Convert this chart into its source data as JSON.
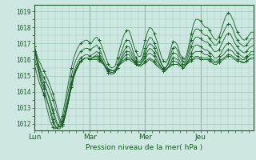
{
  "bg_color": "#cde8e0",
  "grid_color": "#a0c8bc",
  "line_color": "#1a5c28",
  "xlabel": "Pression niveau de la mer( hPa )",
  "yticks": [
    1012,
    1013,
    1014,
    1015,
    1016,
    1017,
    1018,
    1019
  ],
  "ylim": [
    1011.6,
    1019.4
  ],
  "xlim": [
    0,
    95
  ],
  "day_labels": [
    "Lun",
    "Mar",
    "Mer",
    "Jeu"
  ],
  "day_positions": [
    0,
    24,
    48,
    72
  ],
  "series": [
    [
      1016.8,
      1016.3,
      1015.9,
      1015.6,
      1015.3,
      1015.0,
      1014.7,
      1014.3,
      1013.9,
      1013.4,
      1012.8,
      1012.3,
      1012.1,
      1012.5,
      1013.1,
      1013.8,
      1014.5,
      1015.0,
      1015.4,
      1015.7,
      1015.9,
      1016.0,
      1016.1,
      1016.1,
      1016.0,
      1016.0,
      1016.0,
      1016.0,
      1015.9,
      1015.8,
      1015.7,
      1015.5,
      1015.4,
      1015.4,
      1015.3,
      1015.4,
      1015.5,
      1015.7,
      1015.8,
      1015.9,
      1016.0,
      1016.0,
      1015.9,
      1015.8,
      1015.7,
      1015.6,
      1015.6,
      1015.7,
      1015.8,
      1015.9,
      1016.0,
      1015.9,
      1015.8,
      1015.6,
      1015.5,
      1015.4,
      1015.4,
      1015.4,
      1015.5,
      1015.6,
      1015.7,
      1015.7,
      1015.7,
      1015.6,
      1015.6,
      1015.6,
      1015.7,
      1015.8,
      1015.9,
      1016.0,
      1016.1,
      1016.1,
      1016.0,
      1016.0,
      1016.0,
      1016.0,
      1015.9,
      1015.8,
      1015.7,
      1015.7,
      1015.8,
      1015.9,
      1016.0,
      1016.1,
      1016.2,
      1016.2,
      1016.1,
      1016.0,
      1015.9,
      1015.9,
      1015.8,
      1015.8,
      1015.9,
      1016.0,
      1016.1,
      1016.1
    ],
    [
      1016.5,
      1016.0,
      1015.6,
      1015.2,
      1014.9,
      1014.6,
      1014.3,
      1013.9,
      1013.5,
      1013.0,
      1012.5,
      1012.1,
      1012.0,
      1012.4,
      1013.0,
      1013.7,
      1014.4,
      1015.0,
      1015.4,
      1015.7,
      1015.9,
      1016.0,
      1016.1,
      1016.1,
      1016.0,
      1016.1,
      1016.1,
      1016.1,
      1016.0,
      1015.9,
      1015.7,
      1015.5,
      1015.4,
      1015.3,
      1015.3,
      1015.3,
      1015.5,
      1015.7,
      1015.9,
      1016.0,
      1016.1,
      1016.1,
      1016.0,
      1015.9,
      1015.7,
      1015.6,
      1015.6,
      1015.7,
      1015.9,
      1016.0,
      1016.1,
      1016.0,
      1015.9,
      1015.7,
      1015.6,
      1015.5,
      1015.4,
      1015.4,
      1015.5,
      1015.6,
      1015.7,
      1015.7,
      1015.7,
      1015.6,
      1015.6,
      1015.6,
      1015.7,
      1015.9,
      1016.0,
      1016.1,
      1016.2,
      1016.2,
      1016.1,
      1016.1,
      1016.1,
      1016.1,
      1016.0,
      1015.9,
      1015.8,
      1015.8,
      1015.9,
      1016.0,
      1016.1,
      1016.2,
      1016.3,
      1016.3,
      1016.2,
      1016.1,
      1016.0,
      1015.9,
      1015.9,
      1015.8,
      1015.9,
      1016.0,
      1016.1,
      1016.1
    ],
    [
      1016.1,
      1015.6,
      1015.1,
      1014.7,
      1014.4,
      1014.1,
      1013.8,
      1013.4,
      1012.9,
      1012.4,
      1012.0,
      1011.8,
      1011.9,
      1012.3,
      1012.9,
      1013.6,
      1014.3,
      1014.9,
      1015.3,
      1015.6,
      1015.9,
      1016.0,
      1016.1,
      1016.1,
      1016.0,
      1016.1,
      1016.2,
      1016.2,
      1016.1,
      1015.9,
      1015.7,
      1015.5,
      1015.3,
      1015.2,
      1015.2,
      1015.3,
      1015.5,
      1015.7,
      1016.0,
      1016.2,
      1016.3,
      1016.3,
      1016.1,
      1015.9,
      1015.8,
      1015.7,
      1015.7,
      1015.9,
      1016.1,
      1016.3,
      1016.4,
      1016.3,
      1016.2,
      1015.9,
      1015.7,
      1015.5,
      1015.4,
      1015.4,
      1015.5,
      1015.7,
      1015.9,
      1015.9,
      1015.8,
      1015.7,
      1015.6,
      1015.6,
      1015.8,
      1016.0,
      1016.2,
      1016.4,
      1016.5,
      1016.5,
      1016.5,
      1016.4,
      1016.3,
      1016.3,
      1016.2,
      1016.0,
      1015.9,
      1015.9,
      1016.0,
      1016.2,
      1016.3,
      1016.5,
      1016.6,
      1016.6,
      1016.5,
      1016.3,
      1016.2,
      1016.1,
      1016.0,
      1016.0,
      1016.1,
      1016.2,
      1016.3,
      1016.3
    ],
    [
      1015.7,
      1015.1,
      1014.6,
      1014.2,
      1013.9,
      1013.6,
      1013.2,
      1012.8,
      1012.3,
      1011.9,
      1011.7,
      1011.7,
      1011.9,
      1012.3,
      1012.9,
      1013.6,
      1014.3,
      1014.9,
      1015.3,
      1015.6,
      1015.9,
      1016.0,
      1016.1,
      1016.1,
      1016.0,
      1016.1,
      1016.2,
      1016.3,
      1016.2,
      1016.0,
      1015.7,
      1015.4,
      1015.2,
      1015.1,
      1015.1,
      1015.2,
      1015.5,
      1015.8,
      1016.1,
      1016.4,
      1016.5,
      1016.5,
      1016.3,
      1016.0,
      1015.8,
      1015.6,
      1015.7,
      1015.9,
      1016.2,
      1016.5,
      1016.7,
      1016.6,
      1016.4,
      1016.1,
      1015.8,
      1015.5,
      1015.3,
      1015.3,
      1015.5,
      1015.8,
      1016.1,
      1016.1,
      1016.0,
      1015.7,
      1015.5,
      1015.5,
      1015.7,
      1016.0,
      1016.4,
      1016.8,
      1016.9,
      1016.9,
      1016.8,
      1016.7,
      1016.6,
      1016.6,
      1016.4,
      1016.3,
      1016.1,
      1016.1,
      1016.2,
      1016.4,
      1016.7,
      1016.9,
      1017.0,
      1017.0,
      1016.8,
      1016.6,
      1016.4,
      1016.3,
      1016.2,
      1016.1,
      1016.2,
      1016.3,
      1016.5,
      1016.5
    ],
    [
      1016.8,
      1016.1,
      1015.5,
      1015.0,
      1014.6,
      1014.2,
      1013.7,
      1013.2,
      1012.7,
      1012.2,
      1011.9,
      1011.8,
      1012.0,
      1012.5,
      1013.2,
      1013.9,
      1014.6,
      1015.2,
      1015.6,
      1015.9,
      1016.1,
      1016.2,
      1016.3,
      1016.3,
      1016.2,
      1016.3,
      1016.4,
      1016.5,
      1016.4,
      1016.1,
      1015.8,
      1015.5,
      1015.2,
      1015.1,
      1015.1,
      1015.2,
      1015.5,
      1015.9,
      1016.3,
      1016.6,
      1016.8,
      1016.8,
      1016.5,
      1016.2,
      1015.9,
      1015.8,
      1015.8,
      1016.1,
      1016.4,
      1016.8,
      1017.0,
      1016.9,
      1016.7,
      1016.4,
      1016.1,
      1015.7,
      1015.5,
      1015.5,
      1015.7,
      1016.1,
      1016.4,
      1016.4,
      1016.3,
      1015.9,
      1015.7,
      1015.7,
      1015.9,
      1016.3,
      1016.8,
      1017.2,
      1017.4,
      1017.4,
      1017.3,
      1017.2,
      1017.1,
      1017.1,
      1016.9,
      1016.7,
      1016.5,
      1016.5,
      1016.6,
      1016.9,
      1017.2,
      1017.5,
      1017.6,
      1017.6,
      1017.3,
      1017.0,
      1016.8,
      1016.6,
      1016.5,
      1016.4,
      1016.5,
      1016.7,
      1016.8,
      1016.9
    ],
    [
      1016.8,
      1016.0,
      1015.3,
      1014.7,
      1014.2,
      1013.7,
      1013.2,
      1012.6,
      1012.1,
      1011.8,
      1011.7,
      1011.9,
      1012.2,
      1012.8,
      1013.6,
      1014.3,
      1015.0,
      1015.6,
      1016.0,
      1016.3,
      1016.5,
      1016.6,
      1016.7,
      1016.7,
      1016.6,
      1016.7,
      1016.8,
      1016.9,
      1016.7,
      1016.4,
      1016.0,
      1015.7,
      1015.4,
      1015.2,
      1015.2,
      1015.3,
      1015.7,
      1016.2,
      1016.6,
      1017.0,
      1017.2,
      1017.2,
      1016.9,
      1016.4,
      1016.1,
      1015.9,
      1015.9,
      1016.2,
      1016.7,
      1017.1,
      1017.4,
      1017.3,
      1017.0,
      1016.7,
      1016.2,
      1015.8,
      1015.5,
      1015.5,
      1015.8,
      1016.3,
      1016.7,
      1016.8,
      1016.6,
      1016.2,
      1015.9,
      1015.8,
      1016.1,
      1016.6,
      1017.2,
      1017.7,
      1017.9,
      1017.9,
      1017.8,
      1017.6,
      1017.5,
      1017.5,
      1017.3,
      1017.1,
      1016.9,
      1016.9,
      1017.1,
      1017.4,
      1017.7,
      1018.0,
      1018.2,
      1018.2,
      1017.9,
      1017.5,
      1017.2,
      1017.0,
      1016.9,
      1016.8,
      1016.9,
      1017.1,
      1017.3,
      1017.3
    ],
    [
      1016.8,
      1015.9,
      1015.1,
      1014.4,
      1013.8,
      1013.2,
      1012.6,
      1012.1,
      1011.8,
      1011.7,
      1011.8,
      1012.1,
      1012.5,
      1013.2,
      1014.0,
      1014.8,
      1015.5,
      1016.1,
      1016.5,
      1016.8,
      1017.0,
      1017.1,
      1017.2,
      1017.2,
      1017.0,
      1017.1,
      1017.3,
      1017.4,
      1017.2,
      1016.9,
      1016.5,
      1016.1,
      1015.7,
      1015.5,
      1015.5,
      1015.6,
      1016.1,
      1016.7,
      1017.2,
      1017.6,
      1017.8,
      1017.8,
      1017.4,
      1016.9,
      1016.5,
      1016.2,
      1016.2,
      1016.6,
      1017.2,
      1017.7,
      1018.0,
      1017.9,
      1017.6,
      1017.2,
      1016.7,
      1016.2,
      1015.9,
      1015.8,
      1016.1,
      1016.6,
      1017.1,
      1017.1,
      1016.9,
      1016.4,
      1016.1,
      1016.0,
      1016.3,
      1016.9,
      1017.6,
      1018.2,
      1018.5,
      1018.5,
      1018.4,
      1018.2,
      1018.0,
      1018.0,
      1017.8,
      1017.5,
      1017.3,
      1017.2,
      1017.4,
      1017.8,
      1018.3,
      1018.7,
      1018.9,
      1018.8,
      1018.5,
      1018.1,
      1017.7,
      1017.5,
      1017.3,
      1017.2,
      1017.3,
      1017.5,
      1017.7,
      1017.7
    ]
  ]
}
